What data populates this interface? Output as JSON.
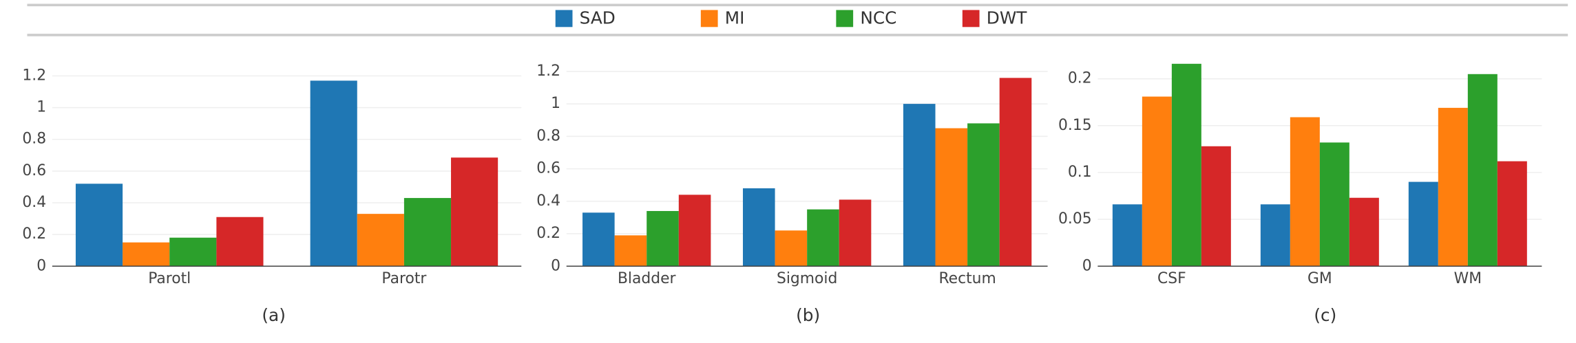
{
  "chart_data": [
    {
      "type": "bar",
      "xlabel": "(a)",
      "categories": [
        "Parotl",
        "Parotr"
      ],
      "series": [
        {
          "name": "SAD",
          "color": "#1f77b4",
          "values": [
            0.52,
            1.17
          ]
        },
        {
          "name": "MI",
          "color": "#ff7f0e",
          "values": [
            0.15,
            0.33
          ]
        },
        {
          "name": "NCC",
          "color": "#2ca02c",
          "values": [
            0.18,
            0.43
          ]
        },
        {
          "name": "DWT",
          "color": "#d62728",
          "values": [
            0.31,
            0.685
          ]
        }
      ],
      "ylim": [
        0,
        1.3
      ],
      "yticks": [
        0,
        0.2,
        0.4,
        0.6,
        0.8,
        1,
        1.2
      ],
      "grid": true
    },
    {
      "type": "bar",
      "xlabel": "(b)",
      "categories": [
        "Bladder",
        "Sigmoid",
        "Rectum"
      ],
      "series": [
        {
          "name": "SAD",
          "color": "#1f77b4",
          "values": [
            0.33,
            0.48,
            1.0
          ]
        },
        {
          "name": "MI",
          "color": "#ff7f0e",
          "values": [
            0.19,
            0.22,
            0.85
          ]
        },
        {
          "name": "NCC",
          "color": "#2ca02c",
          "values": [
            0.34,
            0.35,
            0.88
          ]
        },
        {
          "name": "DWT",
          "color": "#d62728",
          "values": [
            0.44,
            0.41,
            1.16
          ]
        }
      ],
      "ylim": [
        0,
        1.27
      ],
      "yticks": [
        0,
        0.2,
        0.4,
        0.6,
        0.8,
        1,
        1.2
      ],
      "grid": true
    },
    {
      "type": "bar",
      "xlabel": "(c)",
      "categories": [
        "CSF",
        "GM",
        "WM"
      ],
      "series": [
        {
          "name": "SAD",
          "color": "#1f77b4",
          "values": [
            0.066,
            0.066,
            0.09
          ]
        },
        {
          "name": "MI",
          "color": "#ff7f0e",
          "values": [
            0.181,
            0.159,
            0.169
          ]
        },
        {
          "name": "NCC",
          "color": "#2ca02c",
          "values": [
            0.216,
            0.132,
            0.205
          ]
        },
        {
          "name": "DWT",
          "color": "#d62728",
          "values": [
            0.128,
            0.073,
            0.112
          ]
        }
      ],
      "ylim": [
        0,
        0.22
      ],
      "yticks": [
        0,
        0.05,
        0.1,
        0.15,
        0.2
      ],
      "grid": true
    }
  ]
}
